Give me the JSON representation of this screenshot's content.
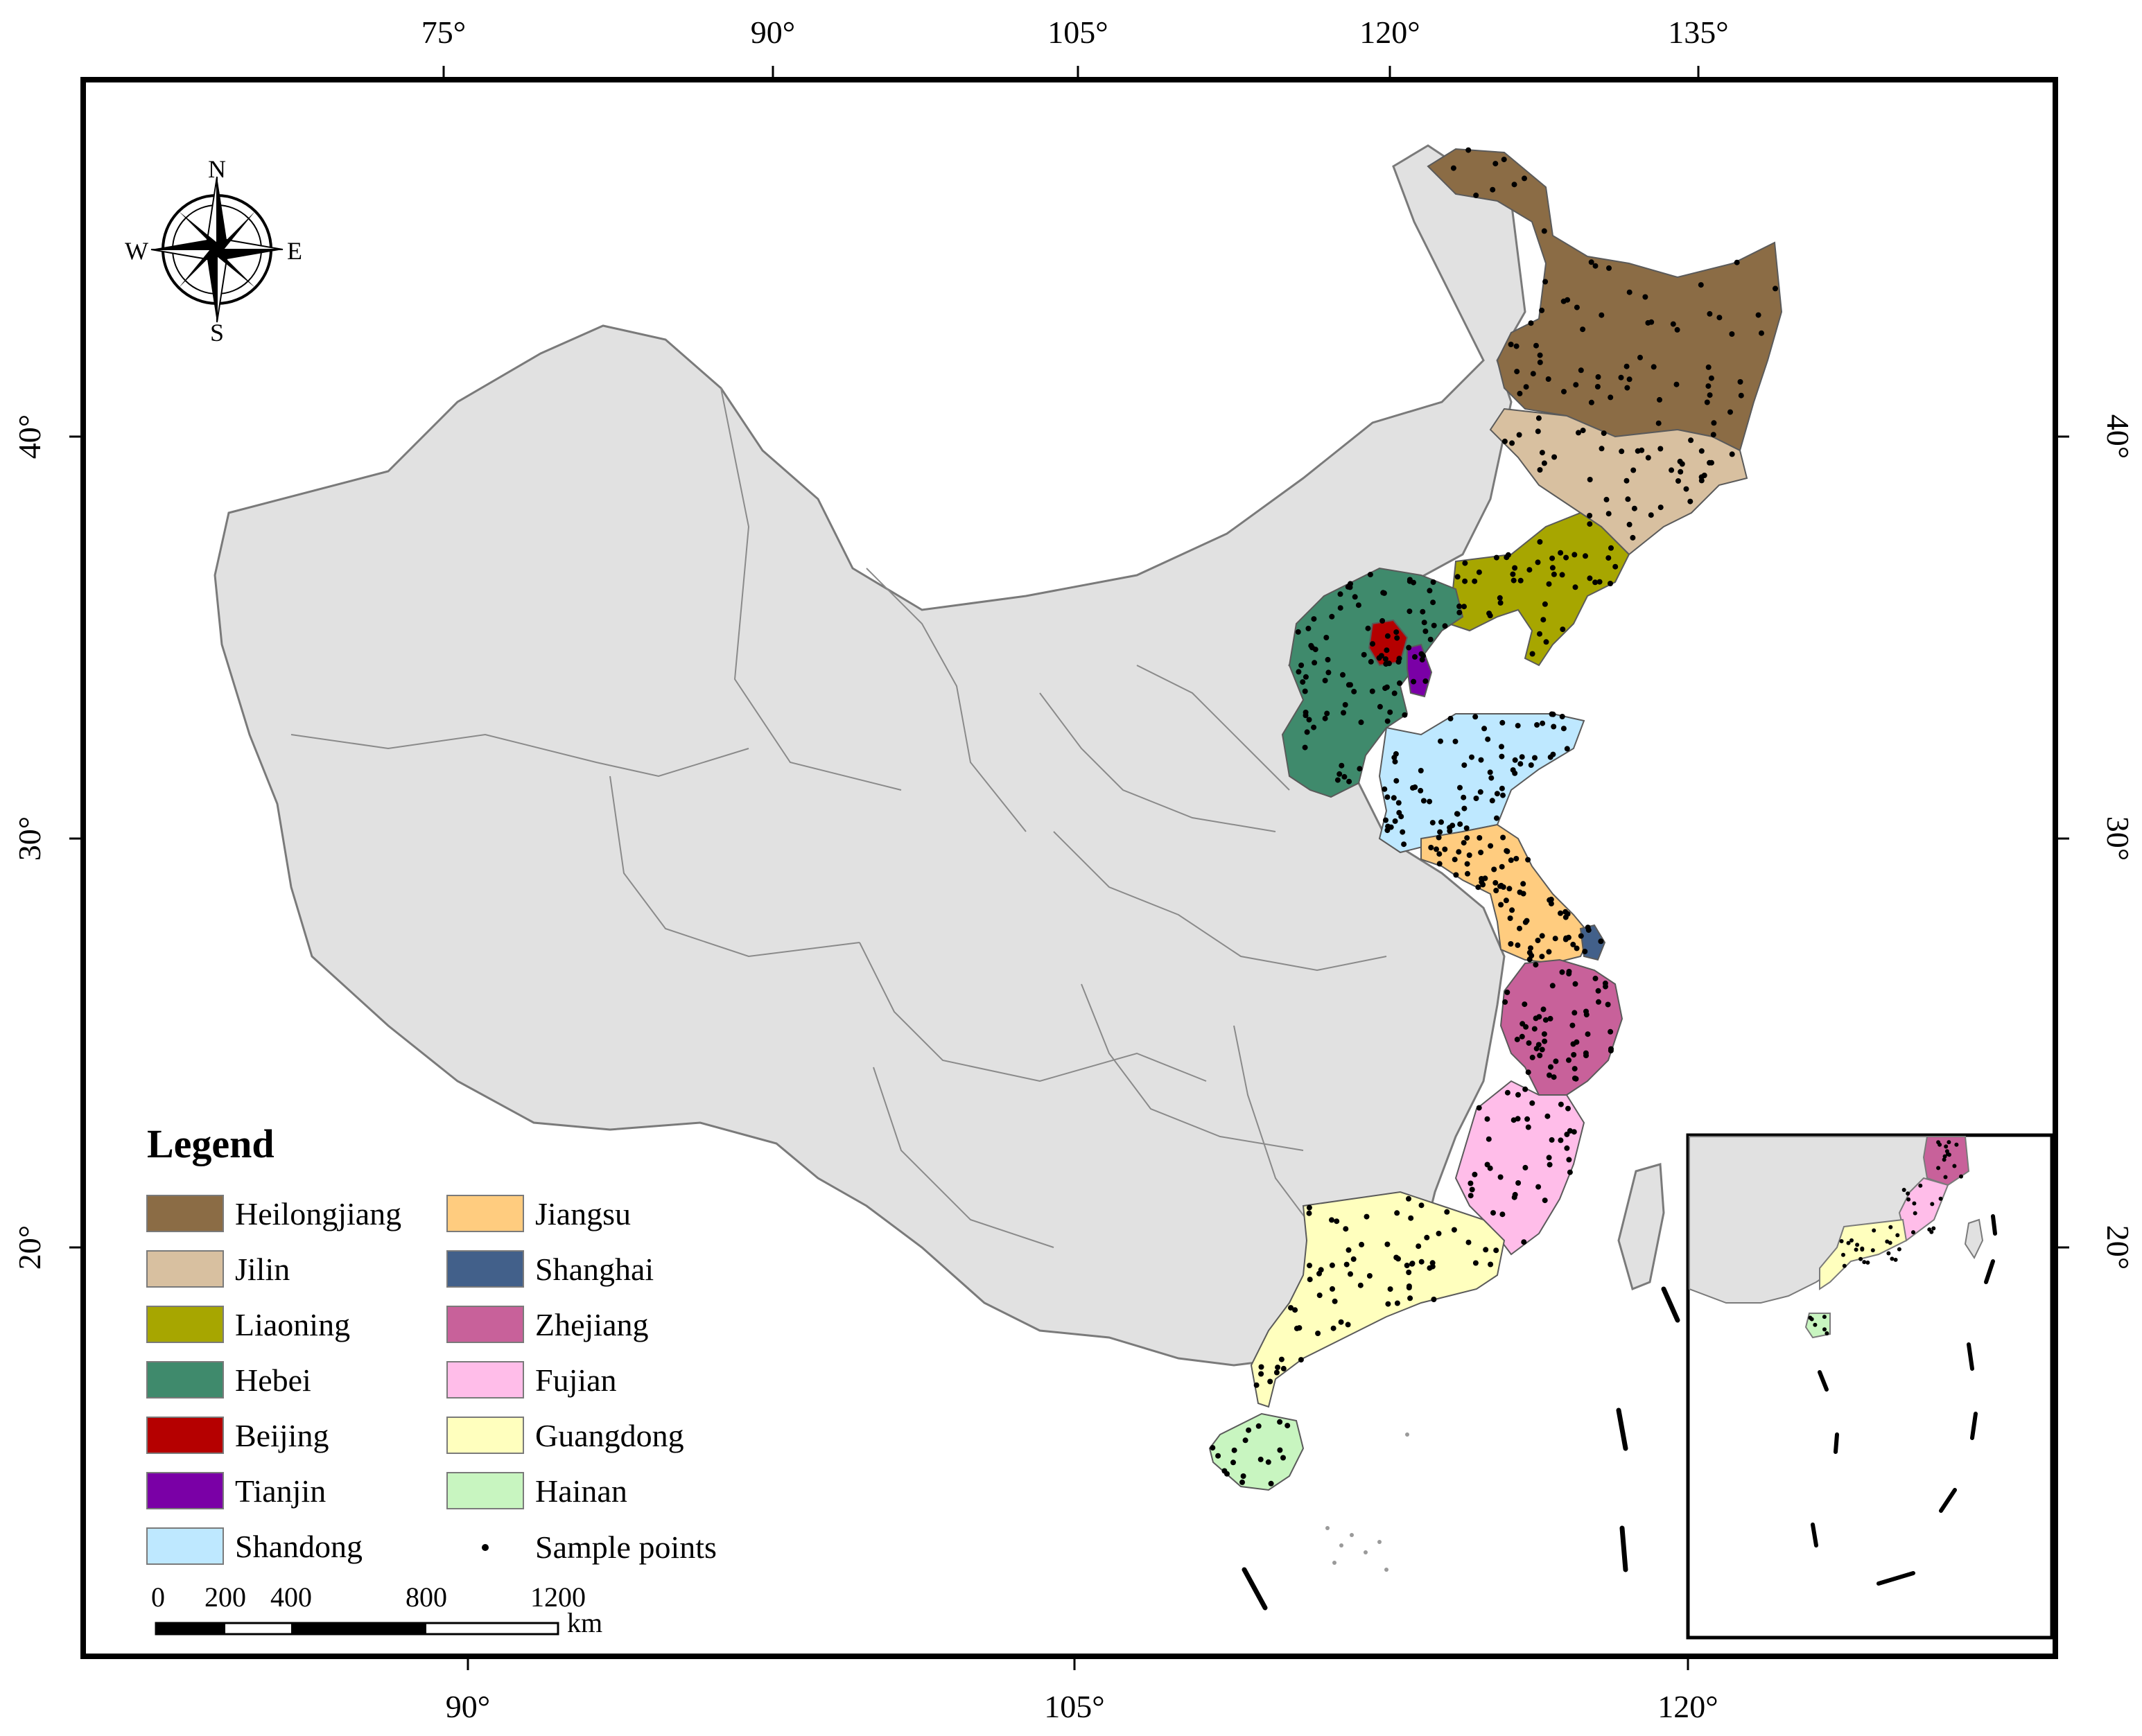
{
  "map": {
    "top_ticks": [
      "75°",
      "90°",
      "105°",
      "120°",
      "135°"
    ],
    "bottom_ticks": [
      "90°",
      "105°",
      "120°"
    ],
    "left_ticks": [
      "40°",
      "30°",
      "20°"
    ],
    "right_ticks": [
      "40°",
      "30°",
      "20°"
    ],
    "compass": {
      "n": "N",
      "s": "S",
      "e": "E",
      "w": "W"
    },
    "legend": {
      "title": "Legend",
      "items": [
        {
          "label": "Heilongjiang",
          "color": "#8b6c45"
        },
        {
          "label": "Jilin",
          "color": "#d8c0a0"
        },
        {
          "label": "Liaoning",
          "color": "#a7a600"
        },
        {
          "label": "Hebei",
          "color": "#3f8a6c"
        },
        {
          "label": "Beijing",
          "color": "#b50000"
        },
        {
          "label": "Tianjin",
          "color": "#7a00a6"
        },
        {
          "label": "Shandong",
          "color": "#bee8ff"
        },
        {
          "label": "Jiangsu",
          "color": "#ffcc7f"
        },
        {
          "label": "Shanghai",
          "color": "#42608a"
        },
        {
          "label": "Zhejiang",
          "color": "#c8619a"
        },
        {
          "label": "Fujian",
          "color": "#ffbde9"
        },
        {
          "label": "Guangdong",
          "color": "#ffffbe"
        },
        {
          "label": "Hainan",
          "color": "#c8f5c0"
        }
      ],
      "points_label": "Sample points"
    },
    "scale_bar": {
      "labels": [
        "0",
        "200",
        "400",
        "800",
        "1200"
      ],
      "unit": "km"
    },
    "colors": {
      "china": "#e1e1e1",
      "border": "#7a7a7a",
      "frame": "#000000"
    }
  }
}
